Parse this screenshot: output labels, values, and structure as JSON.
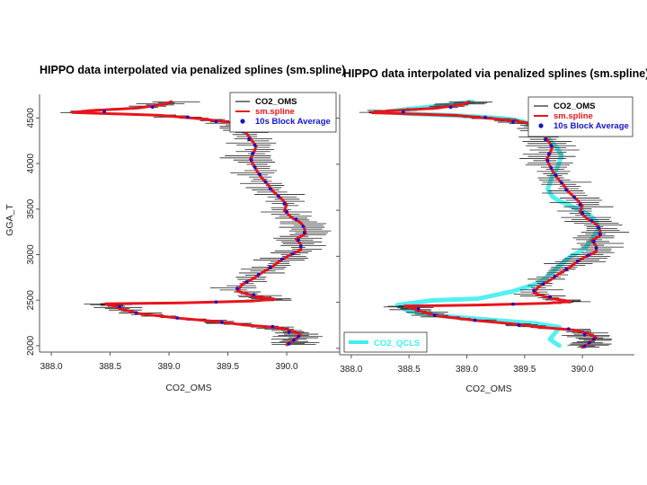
{
  "chart_data": [
    {
      "type": "line",
      "title": "HIPPO data interpolated via penalized splines (sm.spline)",
      "xlabel": "CO2_OMS",
      "ylabel": "GGA_T",
      "xlim": [
        387.9,
        390.45
      ],
      "ylim": [
        1930,
        4760
      ],
      "x_ticks": [
        "388.0",
        "388.5",
        "389.0",
        "389.5",
        "390.0"
      ],
      "x_tick_values": [
        388.0,
        388.5,
        389.0,
        389.5,
        390.0
      ],
      "y_ticks": [
        "2000",
        "2500",
        "3000",
        "3500",
        "4000",
        "4500"
      ],
      "y_tick_values": [
        2000,
        2500,
        3000,
        3500,
        4000,
        4500
      ],
      "legend": {
        "position": "top-right",
        "entries": [
          "CO2_OMS",
          "sm.spline",
          "10s Block Average"
        ]
      },
      "series": [
        {
          "name": "sm.spline",
          "color": "#e8141c",
          "points": [
            [
              389.02,
              4680
            ],
            [
              388.96,
              4650
            ],
            [
              388.74,
              4610
            ],
            [
              388.32,
              4580
            ],
            [
              388.18,
              4560
            ],
            [
              388.55,
              4545
            ],
            [
              388.92,
              4530
            ],
            [
              389.28,
              4490
            ],
            [
              389.52,
              4450
            ],
            [
              389.58,
              4400
            ],
            [
              389.66,
              4330
            ],
            [
              389.7,
              4260
            ],
            [
              389.74,
              4190
            ],
            [
              389.72,
              4120
            ],
            [
              389.69,
              4050
            ],
            [
              389.72,
              3980
            ],
            [
              389.75,
              3910
            ],
            [
              389.79,
              3840
            ],
            [
              389.84,
              3770
            ],
            [
              389.88,
              3700
            ],
            [
              389.95,
              3620
            ],
            [
              390.0,
              3550
            ],
            [
              389.98,
              3480
            ],
            [
              390.04,
              3410
            ],
            [
              390.12,
              3350
            ],
            [
              390.15,
              3290
            ],
            [
              390.16,
              3230
            ],
            [
              390.08,
              3170
            ],
            [
              390.12,
              3110
            ],
            [
              390.12,
              3050
            ],
            [
              390.02,
              2990
            ],
            [
              389.94,
              2930
            ],
            [
              389.88,
              2870
            ],
            [
              389.8,
              2810
            ],
            [
              389.72,
              2740
            ],
            [
              389.62,
              2670
            ],
            [
              389.58,
              2600
            ],
            [
              389.74,
              2540
            ],
            [
              389.9,
              2510
            ],
            [
              389.7,
              2490
            ],
            [
              389.1,
              2470
            ],
            [
              388.46,
              2460
            ],
            [
              388.52,
              2440
            ],
            [
              388.6,
              2400
            ],
            [
              388.76,
              2350
            ],
            [
              389.1,
              2300
            ],
            [
              389.45,
              2260
            ],
            [
              389.62,
              2230
            ],
            [
              389.92,
              2200
            ],
            [
              390.05,
              2160
            ],
            [
              390.12,
              2120
            ],
            [
              390.08,
              2080
            ],
            [
              390.04,
              2040
            ],
            [
              390.0,
              2010
            ]
          ]
        },
        {
          "name": "10s Block Average",
          "color": "#1414c8",
          "points": [
            [
              388.86,
              4620
            ],
            [
              388.45,
              4570
            ],
            [
              389.16,
              4510
            ],
            [
              389.4,
              4460
            ],
            [
              389.55,
              4420
            ],
            [
              389.63,
              4350
            ],
            [
              389.68,
              4270
            ],
            [
              389.73,
              4200
            ],
            [
              389.71,
              4110
            ],
            [
              389.7,
              4040
            ],
            [
              389.73,
              3960
            ],
            [
              389.77,
              3880
            ],
            [
              389.82,
              3800
            ],
            [
              389.86,
              3720
            ],
            [
              389.93,
              3640
            ],
            [
              389.98,
              3560
            ],
            [
              390.0,
              3470
            ],
            [
              390.08,
              3390
            ],
            [
              390.14,
              3310
            ],
            [
              390.15,
              3240
            ],
            [
              390.1,
              3160
            ],
            [
              390.12,
              3090
            ],
            [
              390.05,
              3010
            ],
            [
              389.96,
              2950
            ],
            [
              389.86,
              2860
            ],
            [
              389.76,
              2780
            ],
            [
              389.66,
              2700
            ],
            [
              389.58,
              2630
            ],
            [
              389.72,
              2560
            ],
            [
              389.4,
              2480
            ],
            [
              388.58,
              2430
            ],
            [
              388.72,
              2360
            ],
            [
              389.07,
              2305
            ],
            [
              389.45,
              2255
            ],
            [
              389.88,
              2210
            ],
            [
              390.02,
              2150
            ],
            [
              390.1,
              2100
            ],
            [
              390.06,
              2060
            ],
            [
              390.02,
              2020
            ]
          ]
        }
      ]
    },
    {
      "type": "line",
      "title": "HIPPO data interpolated via penalized splines (sm.spline)",
      "xlabel": "CO2_OMS",
      "ylabel": "",
      "xlim": [
        387.9,
        390.45
      ],
      "ylim": [
        1930,
        4760
      ],
      "x_ticks": [
        "388.0",
        "388.5",
        "389.0",
        "389.5",
        "390.0"
      ],
      "x_tick_values": [
        388.0,
        388.5,
        389.0,
        389.5,
        390.0
      ],
      "y_ticks": [],
      "legend": {
        "position": "top-right",
        "entries": [
          "CO2_OMS",
          "sm.spline",
          "10s Block Average"
        ]
      },
      "legend2": {
        "position": "bottom-left",
        "entries": [
          "CO2_QCLS"
        ]
      },
      "series": [
        {
          "name": "sm.spline",
          "color": "#e8141c",
          "points": [
            [
              389.02,
              4680
            ],
            [
              388.96,
              4650
            ],
            [
              388.74,
              4610
            ],
            [
              388.32,
              4580
            ],
            [
              388.18,
              4560
            ],
            [
              388.55,
              4545
            ],
            [
              388.92,
              4530
            ],
            [
              389.28,
              4490
            ],
            [
              389.52,
              4450
            ],
            [
              389.58,
              4400
            ],
            [
              389.66,
              4330
            ],
            [
              389.7,
              4260
            ],
            [
              389.74,
              4190
            ],
            [
              389.72,
              4120
            ],
            [
              389.69,
              4050
            ],
            [
              389.72,
              3980
            ],
            [
              389.75,
              3910
            ],
            [
              389.79,
              3840
            ],
            [
              389.84,
              3770
            ],
            [
              389.88,
              3700
            ],
            [
              389.95,
              3620
            ],
            [
              390.0,
              3550
            ],
            [
              389.98,
              3480
            ],
            [
              390.04,
              3410
            ],
            [
              390.12,
              3350
            ],
            [
              390.15,
              3290
            ],
            [
              390.16,
              3230
            ],
            [
              390.08,
              3170
            ],
            [
              390.12,
              3110
            ],
            [
              390.12,
              3050
            ],
            [
              390.02,
              2990
            ],
            [
              389.94,
              2930
            ],
            [
              389.88,
              2870
            ],
            [
              389.8,
              2810
            ],
            [
              389.72,
              2740
            ],
            [
              389.62,
              2670
            ],
            [
              389.58,
              2600
            ],
            [
              389.74,
              2540
            ],
            [
              389.9,
              2510
            ],
            [
              389.7,
              2490
            ],
            [
              389.1,
              2470
            ],
            [
              388.46,
              2460
            ],
            [
              388.52,
              2440
            ],
            [
              388.6,
              2400
            ],
            [
              388.76,
              2350
            ],
            [
              389.1,
              2300
            ],
            [
              389.45,
              2260
            ],
            [
              389.62,
              2230
            ],
            [
              389.92,
              2200
            ],
            [
              390.05,
              2160
            ],
            [
              390.12,
              2120
            ],
            [
              390.08,
              2080
            ],
            [
              390.04,
              2040
            ],
            [
              390.0,
              2010
            ]
          ]
        },
        {
          "name": "10s Block Average",
          "color": "#1414c8",
          "points": [
            [
              388.86,
              4620
            ],
            [
              388.45,
              4570
            ],
            [
              389.16,
              4510
            ],
            [
              389.4,
              4460
            ],
            [
              389.55,
              4420
            ],
            [
              389.63,
              4350
            ],
            [
              389.68,
              4270
            ],
            [
              389.73,
              4200
            ],
            [
              389.71,
              4110
            ],
            [
              389.7,
              4040
            ],
            [
              389.73,
              3960
            ],
            [
              389.77,
              3880
            ],
            [
              389.82,
              3800
            ],
            [
              389.86,
              3720
            ],
            [
              389.93,
              3640
            ],
            [
              389.98,
              3560
            ],
            [
              390.0,
              3470
            ],
            [
              390.08,
              3390
            ],
            [
              390.14,
              3310
            ],
            [
              390.15,
              3240
            ],
            [
              390.1,
              3160
            ],
            [
              390.12,
              3090
            ],
            [
              390.05,
              3010
            ],
            [
              389.96,
              2950
            ],
            [
              389.86,
              2860
            ],
            [
              389.76,
              2780
            ],
            [
              389.66,
              2700
            ],
            [
              389.58,
              2630
            ],
            [
              389.72,
              2560
            ],
            [
              389.4,
              2480
            ],
            [
              388.58,
              2430
            ],
            [
              388.72,
              2360
            ],
            [
              389.07,
              2305
            ],
            [
              389.45,
              2255
            ],
            [
              389.88,
              2210
            ],
            [
              390.02,
              2150
            ],
            [
              390.1,
              2100
            ],
            [
              390.06,
              2060
            ],
            [
              390.02,
              2020
            ]
          ]
        },
        {
          "name": "CO2_QCLS",
          "color": "#40eef0",
          "points": [
            [
              389.05,
              4680
            ],
            [
              388.8,
              4640
            ],
            [
              388.5,
              4600
            ],
            [
              388.3,
              4570
            ],
            [
              388.5,
              4550
            ],
            [
              388.9,
              4530
            ],
            [
              389.3,
              4500
            ],
            [
              389.5,
              4460
            ],
            [
              389.58,
              4400
            ],
            [
              389.66,
              4330
            ],
            [
              389.72,
              4260
            ],
            [
              389.78,
              4180
            ],
            [
              389.82,
              4100
            ],
            [
              389.8,
              4020
            ],
            [
              389.78,
              3950
            ],
            [
              389.74,
              3880
            ],
            [
              389.72,
              3800
            ],
            [
              389.7,
              3730
            ],
            [
              389.74,
              3650
            ],
            [
              389.8,
              3600
            ],
            [
              389.88,
              3560
            ],
            [
              389.96,
              3510
            ],
            [
              390.06,
              3450
            ],
            [
              390.12,
              3380
            ],
            [
              390.14,
              3300
            ],
            [
              390.1,
              3220
            ],
            [
              390.06,
              3150
            ],
            [
              390.02,
              3080
            ],
            [
              389.9,
              3000
            ],
            [
              389.82,
              2920
            ],
            [
              389.76,
              2850
            ],
            [
              389.68,
              2760
            ],
            [
              389.6,
              2700
            ],
            [
              389.4,
              2620
            ],
            [
              389.1,
              2540
            ],
            [
              388.7,
              2520
            ],
            [
              388.4,
              2470
            ],
            [
              388.5,
              2400
            ],
            [
              388.8,
              2350
            ],
            [
              389.2,
              2310
            ],
            [
              389.6,
              2270
            ],
            [
              389.8,
              2230
            ],
            [
              389.76,
              2160
            ],
            [
              389.72,
              2100
            ],
            [
              389.76,
              2060
            ],
            [
              389.8,
              2030
            ]
          ]
        }
      ]
    }
  ]
}
